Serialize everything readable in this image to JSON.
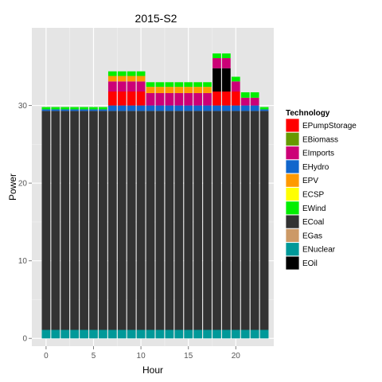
{
  "chart_data": {
    "type": "bar",
    "stacked": true,
    "title": "2015-S2",
    "xlabel": "Hour",
    "ylabel": "Power",
    "xlim": [
      -1.5,
      24
    ],
    "ylim": [
      -1,
      40
    ],
    "x_ticks": [
      0,
      5,
      10,
      15,
      20
    ],
    "y_ticks": [
      0,
      10,
      20,
      30
    ],
    "grid": true,
    "legend": {
      "title": "Technology",
      "position": "right"
    },
    "x": [
      0,
      1,
      2,
      3,
      4,
      5,
      6,
      7,
      8,
      9,
      10,
      11,
      12,
      13,
      14,
      15,
      16,
      17,
      18,
      19,
      20,
      21,
      22,
      23
    ],
    "series": [
      {
        "name": "ENuclear",
        "color": "#009999",
        "values": [
          1.1,
          1.1,
          1.1,
          1.1,
          1.1,
          1.1,
          1.1,
          1.1,
          1.1,
          1.1,
          1.1,
          1.1,
          1.1,
          1.1,
          1.1,
          1.1,
          1.1,
          1.1,
          1.1,
          1.1,
          1.1,
          1.1,
          1.1,
          1.1
        ]
      },
      {
        "name": "ECoal",
        "color": "#333333",
        "values": [
          28.2,
          28.2,
          28.2,
          28.2,
          28.2,
          28.2,
          28.2,
          28.2,
          28.2,
          28.2,
          28.2,
          28.2,
          28.2,
          28.2,
          28.2,
          28.2,
          28.2,
          28.2,
          28.2,
          28.2,
          28.2,
          28.2,
          28.2,
          28.2
        ]
      },
      {
        "name": "EHydro",
        "color": "#1166cc",
        "values": [
          0.2,
          0.2,
          0.2,
          0.2,
          0.2,
          0.2,
          0.2,
          0.7,
          0.7,
          0.7,
          0.7,
          0.7,
          0.7,
          0.7,
          0.7,
          0.7,
          0.7,
          0.7,
          0.7,
          0.7,
          0.7,
          0.7,
          0.7,
          0.2
        ]
      },
      {
        "name": "EPumpStorage",
        "color": "#ff0000",
        "values": [
          0,
          0,
          0,
          0,
          0,
          0,
          0,
          1.8,
          1.8,
          1.8,
          1.8,
          0,
          0,
          0,
          0,
          0,
          0,
          0,
          1.8,
          1.8,
          1.8,
          0,
          0,
          0
        ]
      },
      {
        "name": "EOil",
        "color": "#000000",
        "values": [
          0,
          0,
          0,
          0,
          0,
          0,
          0,
          0,
          0,
          0,
          0,
          0,
          0,
          0,
          0,
          0,
          0,
          0,
          3.0,
          3.0,
          0,
          0,
          0,
          0
        ]
      },
      {
        "name": "EImports",
        "color": "#cc0077",
        "values": [
          0,
          0,
          0,
          0,
          0,
          0,
          0,
          1.3,
          1.3,
          1.3,
          1.3,
          1.6,
          1.6,
          1.6,
          1.6,
          1.6,
          1.6,
          1.6,
          1.3,
          1.3,
          1.3,
          1.0,
          1.0,
          0
        ]
      },
      {
        "name": "EPV",
        "color": "#ff9900",
        "values": [
          0,
          0,
          0,
          0,
          0,
          0,
          0,
          0.7,
          0.7,
          0.7,
          0.7,
          0.8,
          0.8,
          0.8,
          0.8,
          0.8,
          0.8,
          0.8,
          0,
          0,
          0,
          0,
          0,
          0
        ]
      },
      {
        "name": "EWind",
        "color": "#00ee00",
        "values": [
          0.3,
          0.3,
          0.3,
          0.3,
          0.3,
          0.3,
          0.3,
          0.6,
          0.6,
          0.6,
          0.6,
          0.6,
          0.6,
          0.6,
          0.6,
          0.6,
          0.6,
          0.6,
          0.6,
          0.6,
          0.6,
          0.7,
          0.7,
          0.3
        ]
      }
    ],
    "legend_entries": [
      {
        "name": "EPumpStorage",
        "color": "#ff0000"
      },
      {
        "name": "EBiomass",
        "color": "#669900"
      },
      {
        "name": "EImports",
        "color": "#cc0077"
      },
      {
        "name": "EHydro",
        "color": "#1166cc"
      },
      {
        "name": "EPV",
        "color": "#ff9900"
      },
      {
        "name": "ECSP",
        "color": "#ffff00"
      },
      {
        "name": "EWind",
        "color": "#00ee00"
      },
      {
        "name": "ECoal",
        "color": "#333333"
      },
      {
        "name": "EGas",
        "color": "#cc9966"
      },
      {
        "name": "ENuclear",
        "color": "#009999"
      },
      {
        "name": "EOil",
        "color": "#000000"
      }
    ]
  }
}
